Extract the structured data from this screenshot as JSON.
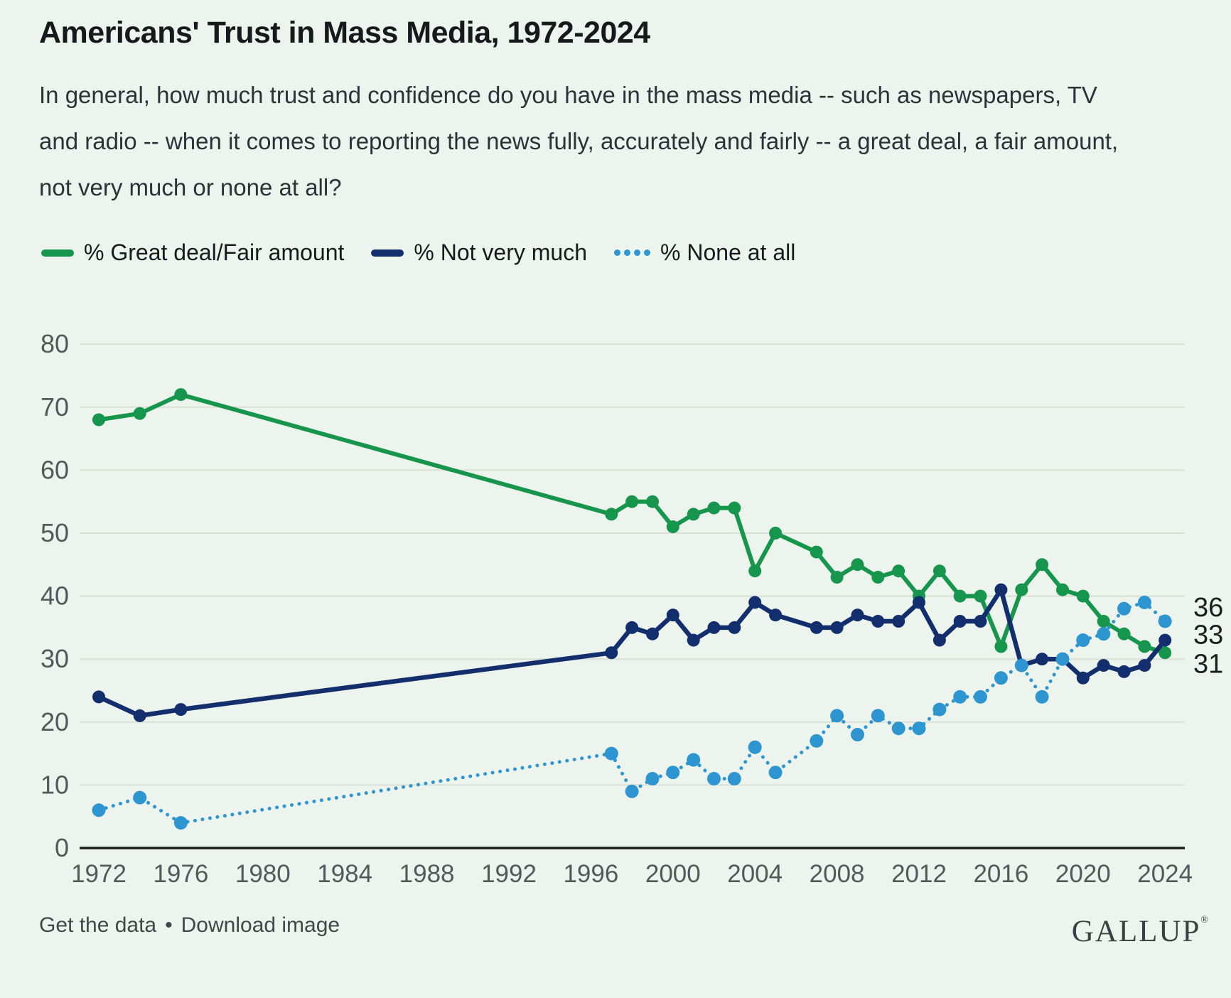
{
  "title": "Americans' Trust in Mass Media, 1972-2024",
  "subtitle": "In general, how much trust and confidence do you have in the mass media -- such as newspapers, TV and radio -- when it comes to reporting the news fully, accurately and fairly -- a great deal, a fair amount, not very much or none at all?",
  "colors": {
    "background": "#edf4ed",
    "grid": "#dadfd7",
    "axis": "#1a1c1d",
    "tick_text": "#54585a",
    "end_label_text": "#1b1d1f",
    "green": "#16964d",
    "navy": "#132e6d",
    "light_blue": "#2d96d1"
  },
  "legend": [
    {
      "label": "% Great deal/Fair amount",
      "color": "#16964d",
      "style": "solid"
    },
    {
      "label": "% Not very much",
      "color": "#132e6d",
      "style": "solid"
    },
    {
      "label": "% None at all",
      "color": "#2d96d1",
      "style": "dotted"
    }
  ],
  "chart_data": {
    "type": "line",
    "x": [
      1972,
      1974,
      1976,
      1997,
      1998,
      1999,
      2000,
      2001,
      2002,
      2003,
      2004,
      2005,
      2007,
      2008,
      2009,
      2010,
      2011,
      2012,
      2013,
      2014,
      2015,
      2016,
      2017,
      2018,
      2019,
      2020,
      2021,
      2022,
      2023,
      2024
    ],
    "series": [
      {
        "name": "% Great deal/Fair amount",
        "color": "#16964d",
        "style": "solid",
        "values": [
          68,
          69,
          72,
          53,
          55,
          55,
          51,
          53,
          54,
          54,
          44,
          50,
          47,
          43,
          45,
          43,
          44,
          40,
          44,
          40,
          40,
          32,
          41,
          45,
          41,
          40,
          36,
          34,
          32,
          31
        ]
      },
      {
        "name": "% Not very much",
        "color": "#132e6d",
        "style": "solid",
        "values": [
          24,
          21,
          22,
          31,
          35,
          34,
          37,
          33,
          35,
          35,
          39,
          37,
          35,
          35,
          37,
          36,
          36,
          39,
          33,
          36,
          36,
          41,
          29,
          30,
          30,
          27,
          29,
          28,
          29,
          33
        ]
      },
      {
        "name": "% None at all",
        "color": "#2d96d1",
        "style": "dotted",
        "values": [
          6,
          8,
          4,
          15,
          9,
          11,
          12,
          14,
          11,
          11,
          16,
          12,
          17,
          21,
          18,
          21,
          19,
          19,
          22,
          24,
          24,
          27,
          29,
          24,
          30,
          33,
          34,
          38,
          39,
          36
        ]
      }
    ],
    "title": "Americans' Trust in Mass Media, 1972-2024",
    "xlabel": "",
    "ylabel": "",
    "xlim": [
      1972,
      2024
    ],
    "ylim": [
      0,
      80
    ],
    "yticks": [
      0,
      10,
      20,
      30,
      40,
      50,
      60,
      70,
      80
    ],
    "xticks": [
      1972,
      1976,
      1980,
      1984,
      1988,
      1992,
      1996,
      2000,
      2004,
      2008,
      2012,
      2016,
      2020,
      2024
    ],
    "grid": true,
    "legend_position": "top",
    "end_labels": [
      {
        "value": 36,
        "series": "% None at all"
      },
      {
        "value": 33,
        "series": "% Not very much"
      },
      {
        "value": 31,
        "series": "% Great deal/Fair amount"
      }
    ]
  },
  "footer": {
    "links": [
      {
        "label": "Get the data"
      },
      {
        "label": "Download image"
      }
    ],
    "separator": "•"
  },
  "logo": {
    "text": "GALLUP",
    "registered": "®"
  }
}
